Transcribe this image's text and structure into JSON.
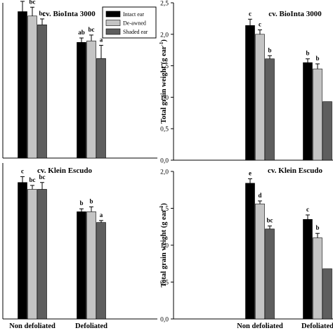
{
  "chart_data": [
    {
      "type": "bar",
      "title": "cv. BioInta 3000",
      "categories": [
        "Non defoliated",
        "Defoliated"
      ],
      "series": [
        {
          "name": "Intact ear",
          "color": "#000000",
          "values": [
            1.0,
            0.79
          ],
          "errors": [
            0.07,
            0.03
          ],
          "letters": [
            "c",
            "ab"
          ]
        },
        {
          "name": "De-awned",
          "color": "#c4c4c4",
          "values": [
            0.97,
            0.8
          ],
          "errors": [
            0.06,
            0.04
          ],
          "letters": [
            "bc",
            "bc"
          ]
        },
        {
          "name": "Shaded ear",
          "color": "#5e5e5e",
          "values": [
            0.91,
            0.68
          ],
          "errors": [
            0.04,
            0.09
          ],
          "letters": [
            "bc",
            "a"
          ]
        }
      ],
      "ylim": [
        0,
        1.06
      ],
      "ticks": [],
      "show_categories": false
    },
    {
      "type": "bar",
      "title": "cv. Klein Escudo",
      "categories": [
        "Non defoliated",
        "Defoliated"
      ],
      "series": [
        {
          "name": "Intact ear",
          "color": "#000000",
          "values": [
            1.4,
            1.1
          ],
          "errors": [
            0.06,
            0.03
          ],
          "letters": [
            "c",
            "b"
          ]
        },
        {
          "name": "De-awned",
          "color": "#c4c4c4",
          "values": [
            1.33,
            1.1
          ],
          "errors": [
            0.04,
            0.05
          ],
          "letters": [
            "bc",
            "b"
          ]
        },
        {
          "name": "Shaded ear",
          "color": "#5e5e5e",
          "values": [
            1.33,
            0.99
          ],
          "errors": [
            0.07,
            0.02
          ],
          "letters": [
            "bc",
            "a"
          ]
        }
      ],
      "ylim": [
        0,
        1.6
      ],
      "ticks": [],
      "show_categories": true
    },
    {
      "type": "bar",
      "title": "cv. BioInta 3000",
      "ylabel": "Total grain weight (g ear",
      "ylabel_sup": "-1",
      "ylabel_end": ")",
      "categories": [
        "Non defoliated",
        "Defoliated"
      ],
      "series": [
        {
          "name": "Intact ear",
          "color": "#000000",
          "values": [
            2.14,
            1.55
          ],
          "errors": [
            0.1,
            0.06
          ],
          "letters": [
            "c",
            "b"
          ]
        },
        {
          "name": "De-awned",
          "color": "#c4c4c4",
          "values": [
            2.0,
            1.45
          ],
          "errors": [
            0.07,
            0.08
          ],
          "letters": [
            "c",
            "b"
          ]
        },
        {
          "name": "Shaded ear",
          "color": "#5e5e5e",
          "values": [
            1.61,
            0.93
          ],
          "errors": [
            0.05,
            0
          ],
          "letters": [
            "b",
            ""
          ]
        }
      ],
      "ylim": [
        0,
        2.5
      ],
      "ticks": [
        "0,0",
        "0,5",
        "1,0",
        "1,5",
        "2,0",
        "2,5"
      ],
      "show_categories": false
    },
    {
      "type": "bar",
      "title": "cv. Klein Escudo",
      "ylabel": "Total grain weight (g ear",
      "ylabel_sup": "-1",
      "ylabel_end": ")",
      "categories": [
        "Non defoliated",
        "Defoliated"
      ],
      "series": [
        {
          "name": "Intact ear",
          "color": "#000000",
          "values": [
            1.84,
            1.35
          ],
          "errors": [
            0.06,
            0.06
          ],
          "letters": [
            "e",
            "c"
          ]
        },
        {
          "name": "De-awned",
          "color": "#c4c4c4",
          "values": [
            1.56,
            1.1
          ],
          "errors": [
            0.04,
            0.06
          ],
          "letters": [
            "d",
            "b"
          ]
        },
        {
          "name": "Shaded ear",
          "color": "#5e5e5e",
          "values": [
            1.22,
            0.68
          ],
          "errors": [
            0.04,
            0
          ],
          "letters": [
            "bc",
            ""
          ]
        }
      ],
      "ylim": [
        0,
        2.0
      ],
      "ticks": [
        "0,0",
        "0,5",
        "1,0",
        "1,5",
        "2,0"
      ],
      "show_categories": true
    }
  ],
  "legend": [
    {
      "label": "Intact ear",
      "color": "#000000"
    },
    {
      "label": "De-awned",
      "color": "#c4c4c4"
    },
    {
      "label": "Shaded ear",
      "color": "#5e5e5e"
    }
  ]
}
